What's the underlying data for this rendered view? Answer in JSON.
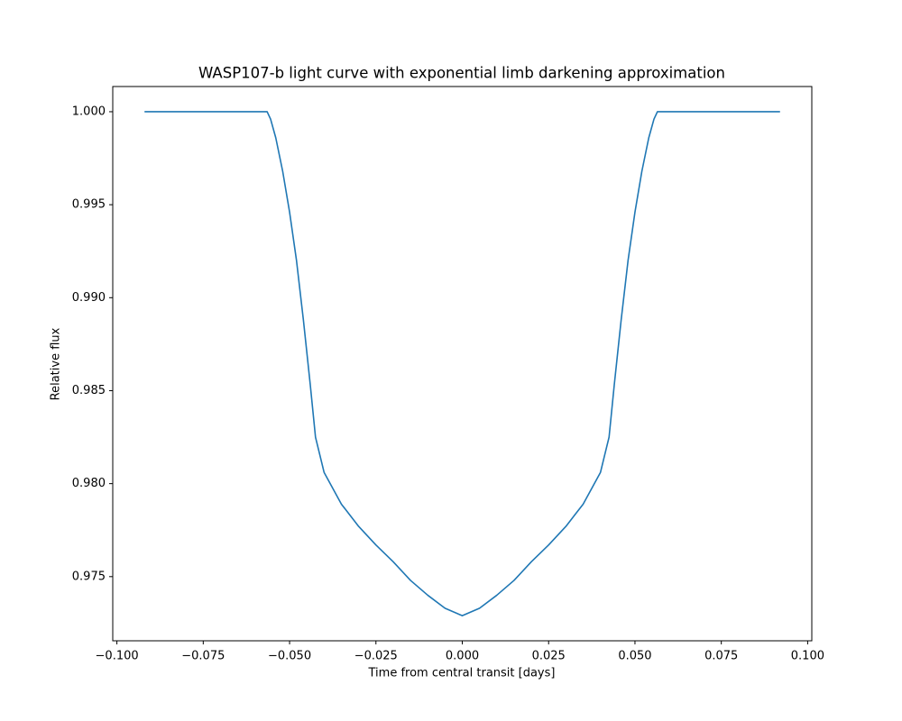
{
  "chart_data": {
    "type": "line",
    "title": "WASP107-b light curve with exponential limb darkening approximation",
    "x_label": "Time from central transit [days]",
    "y_label": "Relative flux",
    "color": "#1f77b4",
    "x": [
      -0.092,
      -0.0565,
      -0.0555,
      -0.054,
      -0.052,
      -0.05,
      -0.048,
      -0.046,
      -0.044,
      -0.0425,
      -0.04,
      -0.035,
      -0.03,
      -0.025,
      -0.02,
      -0.015,
      -0.01,
      -0.005,
      0,
      0.005,
      0.01,
      0.015,
      0.02,
      0.025,
      0.03,
      0.035,
      0.04,
      0.0425,
      0.044,
      0.046,
      0.048,
      0.05,
      0.052,
      0.054,
      0.0555,
      0.0565,
      0.092
    ],
    "values": [
      1.0,
      1.0,
      0.9996,
      0.9986,
      0.9968,
      0.9946,
      0.992,
      0.9888,
      0.9853,
      0.9825,
      0.9806,
      0.9789,
      0.9777,
      0.9767,
      0.9758,
      0.9748,
      0.974,
      0.9733,
      0.9729,
      0.9733,
      0.974,
      0.9748,
      0.9758,
      0.9767,
      0.9777,
      0.9789,
      0.9806,
      0.9825,
      0.9853,
      0.9888,
      0.992,
      0.9946,
      0.9968,
      0.9986,
      0.9996,
      1.0,
      1.0
    ],
    "xlim": [
      -0.1012,
      0.1012
    ],
    "ylim": [
      0.97155,
      1.001355
    ],
    "xticks": [
      {
        "value": -0.1,
        "label": "−0.100"
      },
      {
        "value": -0.075,
        "label": "−0.075"
      },
      {
        "value": -0.05,
        "label": "−0.050"
      },
      {
        "value": -0.025,
        "label": "−0.025"
      },
      {
        "value": 0,
        "label": "0.000"
      },
      {
        "value": 0.025,
        "label": "0.025"
      },
      {
        "value": 0.05,
        "label": "0.050"
      },
      {
        "value": 0.075,
        "label": "0.075"
      },
      {
        "value": 0.1,
        "label": "0.100"
      }
    ],
    "yticks": [
      {
        "value": 0.975,
        "label": "0.975"
      },
      {
        "value": 0.98,
        "label": "0.980"
      },
      {
        "value": 0.985,
        "label": "0.985"
      },
      {
        "value": 0.99,
        "label": "0.990"
      },
      {
        "value": 0.995,
        "label": "0.995"
      },
      {
        "value": 1.0,
        "label": "1.000"
      }
    ],
    "grid": false
  }
}
